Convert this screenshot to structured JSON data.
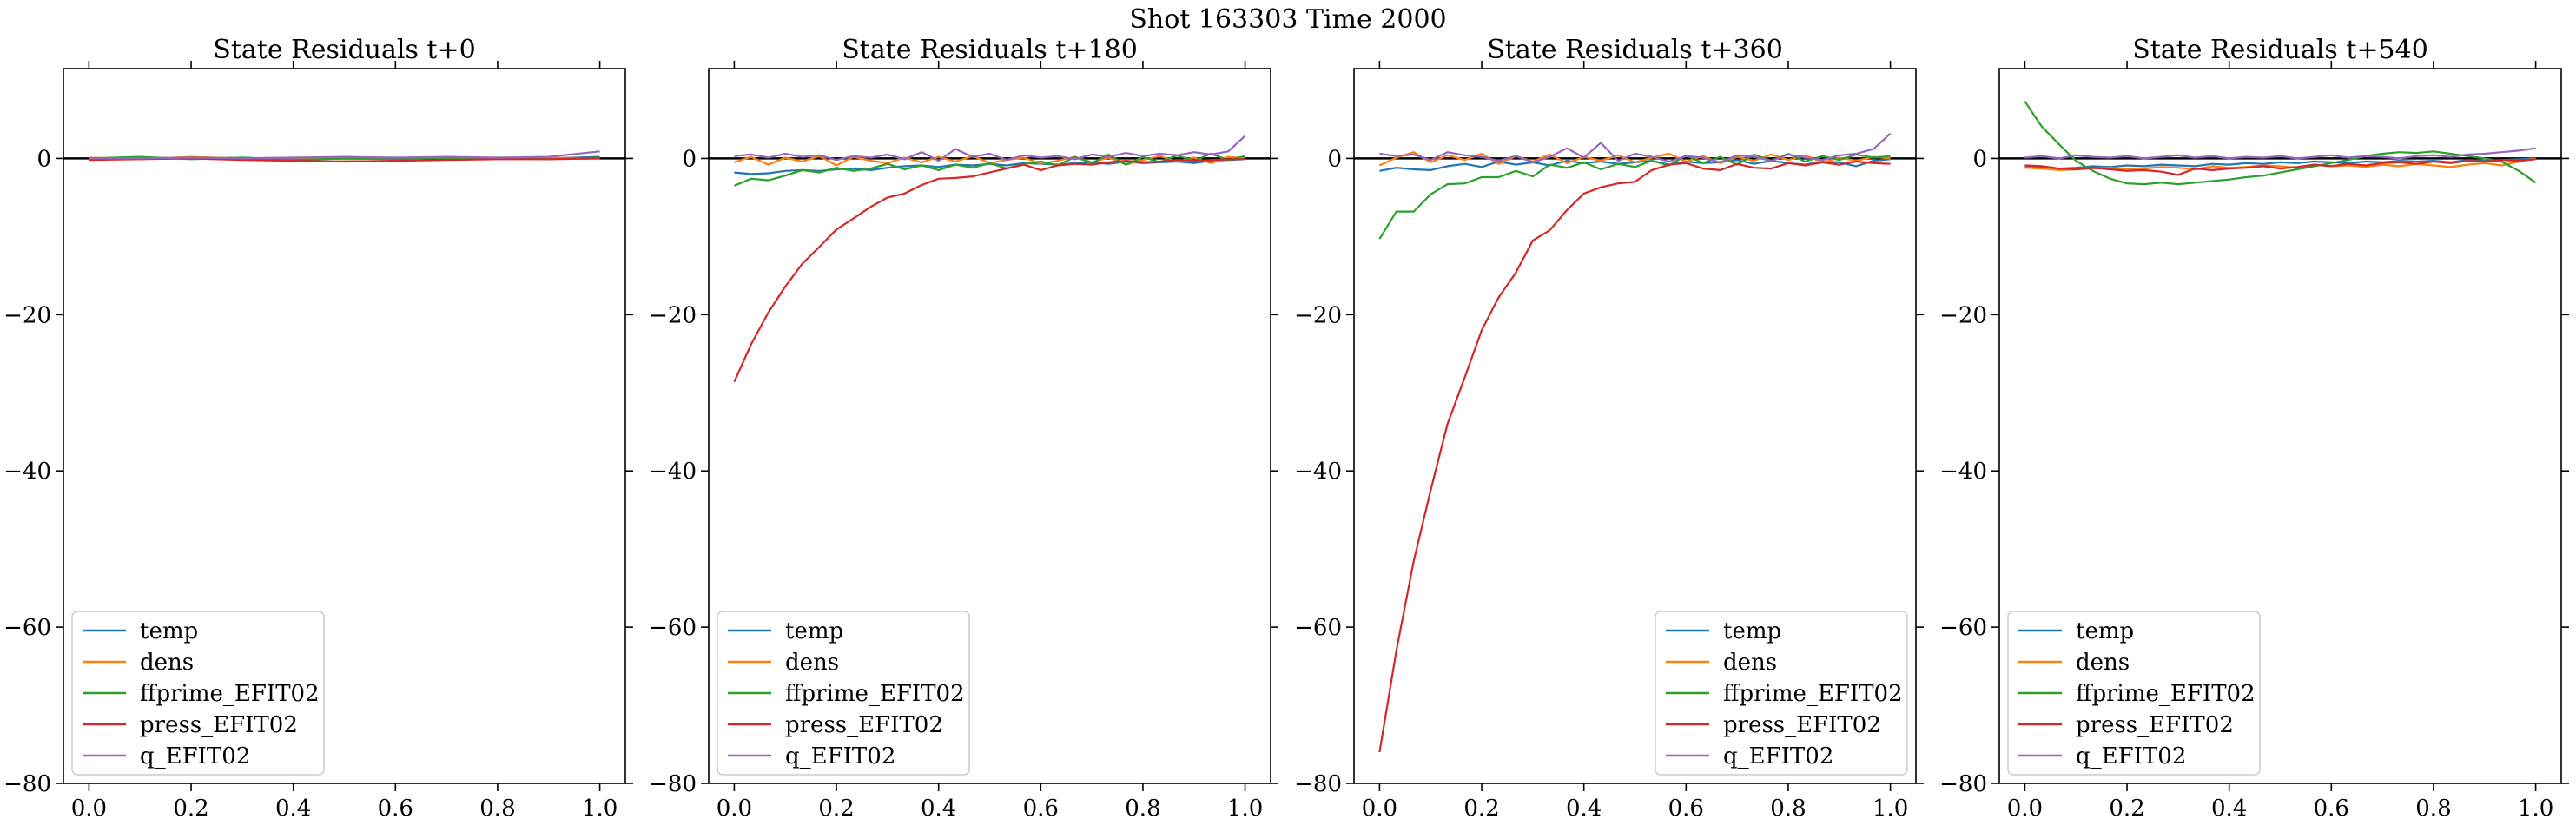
{
  "figure": {
    "suptitle": "Shot 163303   Time 2000"
  },
  "colors": {
    "temp": "#1f77b4",
    "dens": "#ff7f0e",
    "ffprime_EFIT02": "#2ca02c",
    "press_EFIT02": "#d62728",
    "q_EFIT02": "#9467bd",
    "zero_line": "#000000"
  },
  "chart_data": [
    {
      "type": "line",
      "title": "State Residuals t+0",
      "xlabel": "",
      "ylabel": "",
      "xlim": [
        -0.05,
        1.05
      ],
      "ylim": [
        -80,
        11.5
      ],
      "xticks": [
        "0.0",
        "0.2",
        "0.4",
        "0.6",
        "0.8",
        "1.0"
      ],
      "yticks": [
        "0",
        "−20",
        "−40",
        "−60",
        "−80"
      ],
      "grid": false,
      "legend": "lower-left",
      "x": [
        0.0,
        0.1,
        0.2,
        0.3,
        0.4,
        0.5,
        0.6,
        0.7,
        0.8,
        0.9,
        1.0
      ],
      "series": [
        {
          "name": "temp",
          "values": [
            -0.1,
            0.1,
            0.0,
            0.1,
            -0.1,
            0.0,
            0.1,
            0.0,
            0.1,
            0.0,
            0.2
          ]
        },
        {
          "name": "dens",
          "values": [
            0.1,
            -0.1,
            0.2,
            0.0,
            0.1,
            -0.1,
            0.0,
            0.1,
            0.0,
            0.1,
            0.0
          ]
        },
        {
          "name": "ffprime_EFIT02",
          "values": [
            0.0,
            0.2,
            -0.1,
            0.1,
            -0.2,
            0.0,
            -0.1,
            0.1,
            0.0,
            -0.1,
            0.1
          ]
        },
        {
          "name": "press_EFIT02",
          "values": [
            -0.2,
            -0.1,
            0.0,
            -0.2,
            -0.3,
            -0.4,
            -0.3,
            -0.2,
            -0.1,
            -0.1,
            0.0
          ]
        },
        {
          "name": "q_EFIT02",
          "values": [
            0.0,
            0.0,
            0.1,
            0.0,
            0.1,
            0.2,
            0.1,
            0.2,
            0.1,
            0.2,
            0.9
          ]
        }
      ]
    },
    {
      "type": "line",
      "title": "State Residuals t+180",
      "xlabel": "",
      "ylabel": "",
      "xlim": [
        -0.05,
        1.05
      ],
      "ylim": [
        -80,
        11.5
      ],
      "xticks": [
        "0.0",
        "0.2",
        "0.4",
        "0.6",
        "0.8",
        "1.0"
      ],
      "yticks": [
        "0",
        "−20",
        "−40",
        "−60",
        "−80"
      ],
      "grid": false,
      "legend": "lower-left",
      "x": [
        0.0,
        0.033,
        0.067,
        0.1,
        0.133,
        0.167,
        0.2,
        0.233,
        0.267,
        0.3,
        0.333,
        0.367,
        0.4,
        0.433,
        0.467,
        0.5,
        0.533,
        0.567,
        0.6,
        0.633,
        0.667,
        0.7,
        0.733,
        0.767,
        0.8,
        0.833,
        0.867,
        0.9,
        0.933,
        0.967,
        1.0
      ],
      "series": [
        {
          "name": "temp",
          "values": [
            -1.8,
            -2.0,
            -1.9,
            -1.6,
            -1.5,
            -1.6,
            -1.4,
            -1.3,
            -1.5,
            -1.2,
            -1.0,
            -0.9,
            -1.1,
            -0.8,
            -0.9,
            -0.7,
            -0.9,
            -0.6,
            -0.7,
            -0.8,
            -0.6,
            -0.5,
            -0.7,
            -0.4,
            -0.6,
            -0.5,
            -0.4,
            -0.6,
            -0.3,
            -0.2,
            -0.1
          ]
        },
        {
          "name": "dens",
          "values": [
            -0.5,
            0.2,
            -0.8,
            0.1,
            -0.4,
            0.3,
            -0.9,
            0.2,
            -0.3,
            -0.6,
            0.1,
            -0.5,
            0.2,
            -0.4,
            0.3,
            -0.6,
            -0.2,
            0.1,
            -0.7,
            -0.3,
            0.2,
            -0.5,
            0.1,
            -0.8,
            -0.2,
            0.3,
            -0.4,
            0.1,
            -0.6,
            0.2,
            0.0
          ]
        },
        {
          "name": "ffprime_EFIT02",
          "values": [
            -3.5,
            -2.6,
            -2.8,
            -2.2,
            -1.5,
            -1.8,
            -1.2,
            -1.6,
            -1.3,
            -0.7,
            -1.4,
            -0.9,
            -1.5,
            -0.8,
            -1.2,
            -0.6,
            -1.3,
            -0.7,
            -0.4,
            -0.9,
            0.2,
            -0.6,
            0.5,
            -0.8,
            0.2,
            -0.5,
            0.4,
            -0.3,
            0.6,
            -0.2,
            0.3
          ]
        },
        {
          "name": "press_EFIT02",
          "values": [
            -28.6,
            -23.8,
            -19.7,
            -16.4,
            -13.5,
            -11.3,
            -9.1,
            -7.7,
            -6.2,
            -5.0,
            -4.5,
            -3.4,
            -2.6,
            -2.5,
            -2.3,
            -1.8,
            -1.3,
            -0.8,
            -1.5,
            -0.9,
            -0.7,
            -0.8,
            -0.5,
            -0.3,
            -0.5,
            -0.4,
            -0.2,
            -0.3,
            -0.2,
            -0.1,
            -0.1
          ]
        },
        {
          "name": "q_EFIT02",
          "values": [
            0.3,
            0.5,
            0.1,
            0.6,
            0.2,
            0.4,
            -0.2,
            0.3,
            0.1,
            0.5,
            -0.1,
            0.8,
            -0.3,
            1.2,
            0.2,
            0.6,
            -0.2,
            0.4,
            0.1,
            0.3,
            -0.1,
            0.5,
            0.2,
            0.7,
            0.3,
            0.6,
            0.4,
            0.8,
            0.5,
            0.9,
            2.9
          ]
        }
      ]
    },
    {
      "type": "line",
      "title": "State Residuals t+360",
      "xlabel": "",
      "ylabel": "",
      "xlim": [
        -0.05,
        1.05
      ],
      "ylim": [
        -80,
        11.5
      ],
      "xticks": [
        "0.0",
        "0.2",
        "0.4",
        "0.6",
        "0.8",
        "1.0"
      ],
      "yticks": [
        "0",
        "−20",
        "−40",
        "−60",
        "−80"
      ],
      "grid": false,
      "legend": "lower-right",
      "x": [
        0.0,
        0.033,
        0.067,
        0.1,
        0.133,
        0.167,
        0.2,
        0.233,
        0.267,
        0.3,
        0.333,
        0.367,
        0.4,
        0.433,
        0.467,
        0.5,
        0.533,
        0.567,
        0.6,
        0.633,
        0.667,
        0.7,
        0.733,
        0.767,
        0.8,
        0.833,
        0.867,
        0.9,
        0.933,
        0.967,
        1.0
      ],
      "series": [
        {
          "name": "temp",
          "values": [
            -1.6,
            -1.2,
            -1.4,
            -1.5,
            -1.0,
            -0.7,
            -1.1,
            -0.4,
            -0.8,
            -0.5,
            -0.9,
            -0.3,
            -0.6,
            -0.4,
            -0.7,
            -0.5,
            -0.3,
            -0.8,
            -0.4,
            -0.6,
            -0.5,
            -0.2,
            -0.7,
            -0.3,
            -0.6,
            -0.8,
            -0.4,
            -0.5,
            -1.0,
            -0.3,
            -0.1
          ]
        },
        {
          "name": "dens",
          "values": [
            -0.9,
            0.1,
            0.8,
            -0.5,
            0.4,
            -0.2,
            0.6,
            -0.7,
            0.3,
            -0.4,
            0.5,
            -0.6,
            0.2,
            -0.3,
            0.4,
            -0.5,
            0.1,
            0.6,
            -0.4,
            0.3,
            -0.6,
            0.2,
            -0.3,
            0.5,
            -0.2,
            0.4,
            -0.5,
            0.1,
            -0.3,
            0.2,
            0.0
          ]
        },
        {
          "name": "ffprime_EFIT02",
          "values": [
            -10.3,
            -6.8,
            -6.8,
            -4.6,
            -3.3,
            -3.2,
            -2.4,
            -2.4,
            -1.6,
            -2.3,
            -0.8,
            -1.2,
            -0.5,
            -1.4,
            -0.7,
            -1.1,
            -0.3,
            -0.9,
            0.4,
            -0.6,
            0.2,
            -0.8,
            0.5,
            -0.3,
            0.6,
            -0.4,
            0.3,
            -0.2,
            0.5,
            0.1,
            0.3
          ]
        },
        {
          "name": "press_EFIT02",
          "values": [
            -76.0,
            -63.0,
            -51.5,
            -42.5,
            -34.0,
            -28.0,
            -22.0,
            -17.8,
            -14.6,
            -10.5,
            -9.2,
            -6.6,
            -4.5,
            -3.7,
            -3.2,
            -3.0,
            -1.5,
            -0.8,
            -0.6,
            -1.3,
            -1.5,
            -0.7,
            -1.2,
            -1.3,
            -0.6,
            -0.9,
            -0.5,
            -0.8,
            -0.4,
            -0.6,
            -0.7
          ]
        },
        {
          "name": "q_EFIT02",
          "values": [
            0.6,
            0.3,
            0.5,
            -0.2,
            0.8,
            0.4,
            0.2,
            -0.3,
            0.3,
            -0.5,
            0.2,
            1.3,
            0.1,
            2.0,
            -0.3,
            0.6,
            0.2,
            -0.4,
            0.3,
            0.1,
            -0.5,
            0.4,
            0.2,
            -0.3,
            0.5,
            0.1,
            -0.2,
            0.4,
            0.6,
            1.2,
            3.2
          ]
        }
      ]
    },
    {
      "type": "line",
      "title": "State Residuals t+540",
      "xlabel": "",
      "ylabel": "",
      "xlim": [
        -0.05,
        1.05
      ],
      "ylim": [
        -80,
        11.5
      ],
      "xticks": [
        "0.0",
        "0.2",
        "0.4",
        "0.6",
        "0.8",
        "1.0"
      ],
      "yticks": [
        "0",
        "−20",
        "−40",
        "−60",
        "−80"
      ],
      "grid": false,
      "legend": "lower-left",
      "x": [
        0.0,
        0.033,
        0.067,
        0.1,
        0.133,
        0.167,
        0.2,
        0.233,
        0.267,
        0.3,
        0.333,
        0.367,
        0.4,
        0.433,
        0.467,
        0.5,
        0.533,
        0.567,
        0.6,
        0.633,
        0.667,
        0.7,
        0.733,
        0.767,
        0.8,
        0.833,
        0.867,
        0.9,
        0.933,
        0.967,
        1.0
      ],
      "series": [
        {
          "name": "temp",
          "values": [
            -1.0,
            -1.1,
            -1.3,
            -1.2,
            -1.0,
            -1.1,
            -0.9,
            -1.0,
            -0.8,
            -0.9,
            -1.0,
            -0.7,
            -0.8,
            -0.6,
            -0.7,
            -0.5,
            -0.6,
            -0.4,
            -0.5,
            -0.6,
            -0.4,
            -0.5,
            -0.3,
            -0.4,
            -0.3,
            -0.5,
            -0.2,
            -0.3,
            -0.2,
            -0.1,
            0.0
          ]
        },
        {
          "name": "dens",
          "values": [
            -1.2,
            -1.3,
            -1.5,
            -1.4,
            -1.3,
            -1.2,
            -1.4,
            -1.3,
            -1.1,
            -1.2,
            -1.4,
            -1.0,
            -1.2,
            -1.1,
            -0.9,
            -1.0,
            -1.2,
            -0.8,
            -1.0,
            -0.9,
            -1.1,
            -0.8,
            -1.0,
            -0.7,
            -0.9,
            -1.1,
            -0.8,
            -0.6,
            -0.9,
            -0.4,
            0.0
          ]
        },
        {
          "name": "ffprime_EFIT02",
          "values": [
            7.3,
            4.1,
            1.8,
            -0.3,
            -1.6,
            -2.6,
            -3.2,
            -3.3,
            -3.1,
            -3.3,
            -3.1,
            -2.9,
            -2.7,
            -2.4,
            -2.2,
            -1.8,
            -1.4,
            -1.0,
            -0.6,
            -0.2,
            0.3,
            0.6,
            0.8,
            0.7,
            0.9,
            0.6,
            0.3,
            0.0,
            -0.4,
            -1.6,
            -3.1
          ]
        },
        {
          "name": "press_EFIT02",
          "values": [
            -0.9,
            -1.0,
            -1.3,
            -1.4,
            -1.2,
            -1.4,
            -1.6,
            -1.5,
            -1.7,
            -2.1,
            -1.3,
            -1.5,
            -1.3,
            -1.2,
            -1.0,
            -1.3,
            -1.1,
            -0.8,
            -1.0,
            -0.7,
            -0.9,
            -0.6,
            -0.5,
            -0.7,
            -0.4,
            -0.6,
            -0.3,
            -0.4,
            -0.2,
            -0.3,
            -0.1
          ]
        },
        {
          "name": "q_EFIT02",
          "values": [
            0.1,
            0.3,
            0.0,
            0.4,
            0.2,
            0.1,
            0.3,
            0.0,
            0.2,
            0.4,
            0.1,
            0.3,
            0.0,
            0.2,
            0.1,
            0.3,
            0.0,
            0.2,
            0.4,
            0.1,
            0.3,
            0.2,
            0.0,
            0.3,
            0.4,
            0.2,
            0.5,
            0.6,
            0.8,
            1.0,
            1.3
          ]
        }
      ]
    }
  ]
}
